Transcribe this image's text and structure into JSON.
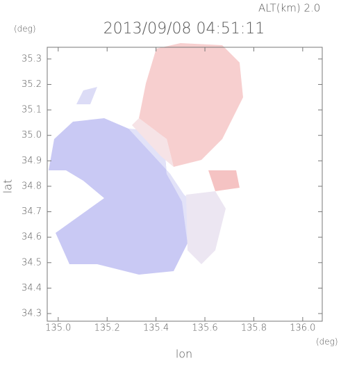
{
  "chart_data": {
    "type": "map",
    "title": "2013/09/08 04:51:11",
    "subtitle": "ALT(km) 2.0",
    "x_label": "lon",
    "y_label": "lat",
    "x_unit": "(deg)",
    "y_unit": "(deg)",
    "xlim": [
      134.955,
      136.08
    ],
    "ylim": [
      34.27,
      35.346
    ],
    "xticks": [
      {
        "value": 135,
        "label": "135.0"
      },
      135.2,
      135.4,
      135.6,
      135.8,
      {
        "value": 136,
        "label": "136.0"
      }
    ],
    "yticks": [
      34.3,
      34.4,
      34.5,
      34.6,
      34.7,
      34.8,
      34.9,
      {
        "value": 35,
        "label": "35.0"
      },
      35.1,
      35.2,
      35.3
    ]
  }
}
